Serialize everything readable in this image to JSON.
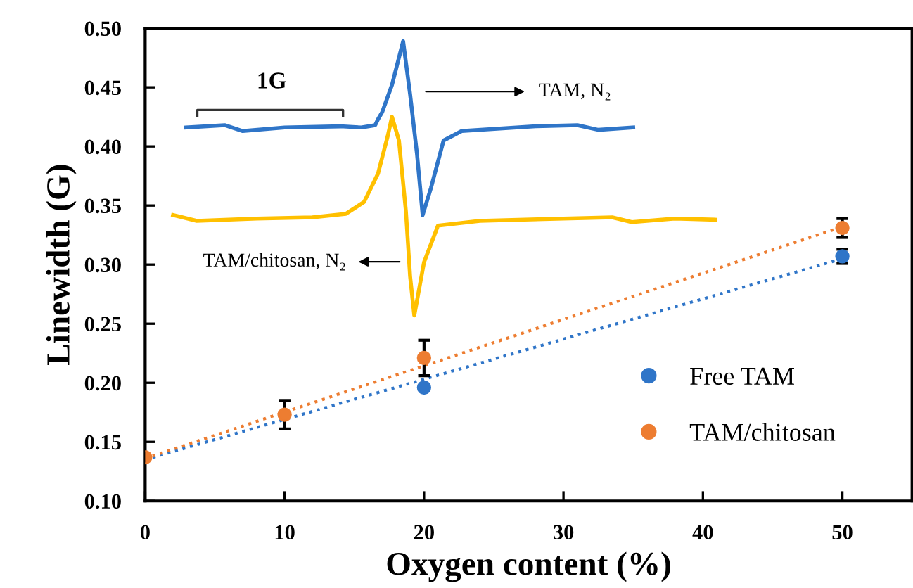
{
  "chart_data": {
    "type": "scatter",
    "xlabel": "Oxygen content (%)",
    "ylabel": "Linewidth (G)",
    "xlim": [
      0,
      55
    ],
    "ylim": [
      0.1,
      0.5
    ],
    "xticks": [
      0,
      10,
      20,
      30,
      40,
      50
    ],
    "yticks": [
      {
        "value": 0.1,
        "label": "0.10"
      },
      0.15,
      {
        "value": 0.2,
        "label": "0.20"
      },
      0.25,
      {
        "value": 0.3,
        "label": "0.30"
      },
      0.35,
      {
        "value": 0.4,
        "label": "0.40"
      },
      0.45,
      {
        "value": 0.5,
        "label": "0.50"
      }
    ],
    "grid": false,
    "legend": "right",
    "marker": "circle",
    "series": [
      {
        "type": "line",
        "color": "#2f75c8",
        "line_style": "solid",
        "marker": "none",
        "x": [
          2.9,
          5.7,
          7.0,
          10,
          14,
          15.5,
          16.5,
          16.7,
          17.0,
          17.7,
          18.5,
          19.0,
          19.5,
          19.9,
          20.5,
          21.4,
          22.7,
          28,
          31.0,
          32.5,
          35
        ],
        "values": [
          0.416,
          0.418,
          0.413,
          0.416,
          0.417,
          0.416,
          0.418,
          0.423,
          0.429,
          0.452,
          0.489,
          0.444,
          0.393,
          0.342,
          0.365,
          0.405,
          0.413,
          0.417,
          0.418,
          0.414,
          0.416
        ]
      },
      {
        "type": "line",
        "color": "#ffc000",
        "line_style": "solid",
        "marker": "none",
        "x": [
          2.0,
          3.7,
          8,
          12,
          14.4,
          15.7,
          16.7,
          17.4,
          17.7,
          18.2,
          18.7,
          19.0,
          19.3,
          20.0,
          21.0,
          24,
          30,
          33.5,
          34.9,
          38,
          40.9
        ],
        "values": [
          0.342,
          0.337,
          0.339,
          0.34,
          0.343,
          0.353,
          0.377,
          0.409,
          0.425,
          0.405,
          0.345,
          0.29,
          0.257,
          0.302,
          0.333,
          0.337,
          0.339,
          0.34,
          0.336,
          0.339,
          0.338
        ]
      },
      {
        "type": "line",
        "color": "#2f75c8",
        "line_style": "dotted",
        "marker": "none",
        "x": [
          0,
          50
        ],
        "values": [
          0.135,
          0.305
        ]
      },
      {
        "type": "line",
        "color": "#ed7d31",
        "line_style": "dotted",
        "marker": "none",
        "x": [
          0,
          50
        ],
        "values": [
          0.136,
          0.332
        ]
      },
      {
        "name": "Free TAM",
        "color": "#2f75c8",
        "x": [
          20,
          50
        ],
        "values": [
          0.196,
          0.307
        ],
        "errors": [
          null,
          0.006
        ]
      },
      {
        "name": "TAM/chitosan",
        "color": "#ed7d31",
        "x": [
          0,
          10,
          20,
          50
        ],
        "values": [
          0.137,
          0.173,
          0.221,
          0.331
        ],
        "errors": [
          null,
          0.012,
          0.015,
          0.008
        ]
      }
    ],
    "annotations": [
      "TAM, N₂",
      "TAM/chitosan, N₂",
      "1G"
    ]
  }
}
